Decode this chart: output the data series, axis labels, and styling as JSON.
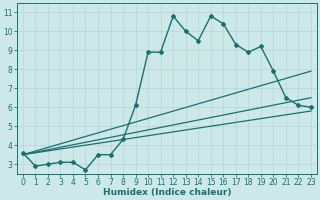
{
  "xlabel": "Humidex (Indice chaleur)",
  "bg_color": "#cce8e8",
  "grid_color": "#b8d4d4",
  "line_color": "#1a7070",
  "xlim": [
    -0.5,
    23.5
  ],
  "ylim": [
    2.5,
    11.5
  ],
  "xticks": [
    0,
    1,
    2,
    3,
    4,
    5,
    6,
    7,
    8,
    9,
    10,
    11,
    12,
    13,
    14,
    15,
    16,
    17,
    18,
    19,
    20,
    21,
    22,
    23
  ],
  "yticks": [
    3,
    4,
    5,
    6,
    7,
    8,
    9,
    10,
    11
  ],
  "series": [
    {
      "x": [
        0,
        1,
        2,
        3,
        4,
        5,
        6,
        7,
        8,
        9,
        10,
        11,
        12,
        13,
        14,
        15,
        16,
        17,
        18,
        19,
        20,
        21,
        22,
        23
      ],
      "y": [
        3.6,
        2.9,
        3.0,
        3.1,
        3.1,
        2.7,
        3.5,
        3.5,
        4.3,
        6.1,
        8.9,
        8.9,
        10.8,
        10.0,
        9.5,
        10.8,
        10.4,
        9.3,
        8.9,
        9.2,
        7.9,
        6.5,
        6.1,
        6.0
      ],
      "marker": "D",
      "markersize": 2.0,
      "linewidth": 1.0,
      "zorder": 3
    },
    {
      "x": [
        0,
        23
      ],
      "y": [
        3.5,
        7.9
      ],
      "marker": null,
      "linewidth": 0.9,
      "zorder": 2
    },
    {
      "x": [
        0,
        23
      ],
      "y": [
        3.5,
        6.5
      ],
      "marker": null,
      "linewidth": 0.9,
      "zorder": 2
    },
    {
      "x": [
        0,
        23
      ],
      "y": [
        3.5,
        5.8
      ],
      "marker": null,
      "linewidth": 0.9,
      "zorder": 2
    }
  ],
  "tick_fontsize": 5.5,
  "xlabel_fontsize": 6.5
}
